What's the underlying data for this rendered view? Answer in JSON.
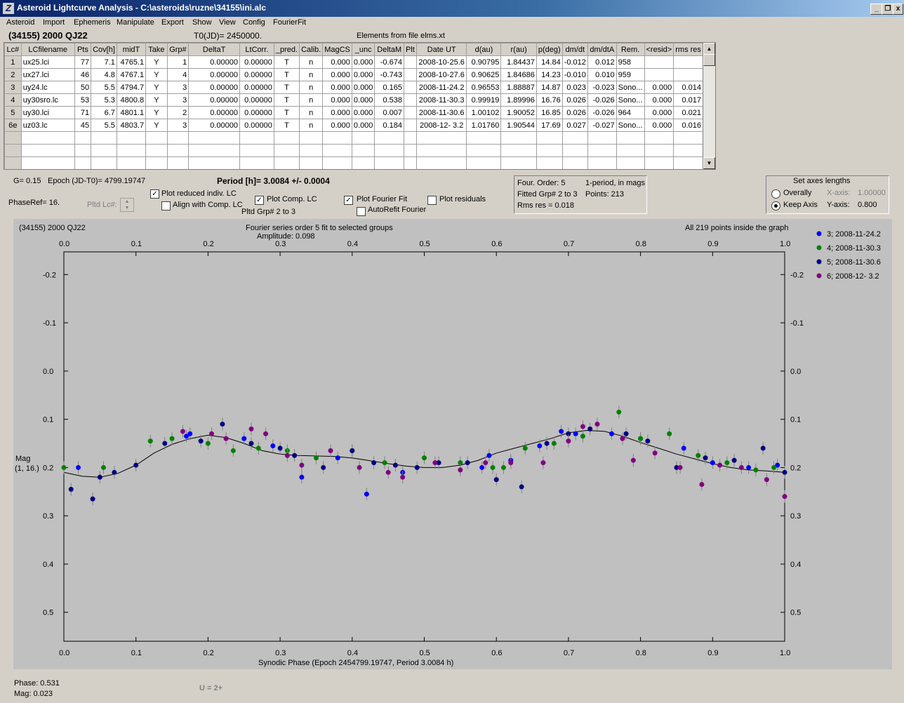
{
  "window": {
    "title": "Asteroid Lightcurve Analysis - C:\\asteroids\\ruzne\\34155\\ini.alc",
    "icon_letter": "Z",
    "buttons": {
      "minimize": "_",
      "restore": "❐",
      "close": "x"
    }
  },
  "menu": [
    "Asteroid",
    "Import",
    "Ephemeris",
    "Manipulate",
    "Export",
    "Show",
    "View",
    "Config",
    "FourierFit"
  ],
  "header": {
    "asteroid": "(34155) 2000 QJ22",
    "t0": "T0(JD)= 2450000.",
    "elements": "Elements from file elms.xt"
  },
  "table": {
    "columns": [
      "Lc#",
      "LCfilename",
      "Pts",
      "Cov[h]",
      "midT",
      "Take",
      "Grp#",
      "DeltaT",
      "LtCorr.",
      "_pred.",
      "Calib.",
      "MagCS",
      "_unc",
      "DeltaM",
      "Plt",
      "Date UT",
      "d(au)",
      "r(au)",
      "p(deg)",
      "dm/dt",
      "dm/dtA",
      "Rem.",
      "<resid>",
      "rms res"
    ],
    "rows": [
      [
        "1",
        "ux25.lci",
        "77",
        "7.1",
        "4765.1",
        "Y",
        "1",
        "0.00000",
        "0.00000",
        "T",
        "n",
        "0.000",
        "0.000",
        "-0.674",
        "",
        "2008-10-25.6",
        "0.90795",
        "1.84437",
        "14.84",
        "-0.012",
        "0.012",
        "958",
        "",
        ""
      ],
      [
        "2",
        "ux27.lci",
        "46",
        "4.8",
        "4767.1",
        "Y",
        "4",
        "0.00000",
        "0.00000",
        "T",
        "n",
        "0.000",
        "0.000",
        "-0.743",
        "",
        "2008-10-27.6",
        "0.90625",
        "1.84686",
        "14.23",
        "-0.010",
        "0.010",
        "959",
        "",
        ""
      ],
      [
        "3",
        "uy24.lc",
        "50",
        "5.5",
        "4794.7",
        "Y",
        "3",
        "0.00000",
        "0.00000",
        "T",
        "n",
        "0.000",
        "0.000",
        "0.165",
        "",
        "2008-11-24.2",
        "0.96553",
        "1.88887",
        "14.87",
        "0.023",
        "-0.023",
        "Sono...",
        "0.000",
        "0.014"
      ],
      [
        "4",
        "uy30sro.lc",
        "53",
        "5.3",
        "4800.8",
        "Y",
        "3",
        "0.00000",
        "0.00000",
        "T",
        "n",
        "0.000",
        "0.000",
        "0.538",
        "",
        "2008-11-30.3",
        "0.99919",
        "1.89996",
        "16.76",
        "0.026",
        "-0.026",
        "Sono...",
        "0.000",
        "0.017"
      ],
      [
        "5",
        "uy30.lci",
        "71",
        "6.7",
        "4801.1",
        "Y",
        "2",
        "0.00000",
        "0.00000",
        "T",
        "n",
        "0.000",
        "0.000",
        "0.007",
        "",
        "2008-11-30.6",
        "1.00102",
        "1.90052",
        "16.85",
        "0.026",
        "-0.026",
        "964",
        "0.000",
        "0.021"
      ],
      [
        "6e",
        "uz03.lc",
        "45",
        "5.5",
        "4803.7",
        "Y",
        "3",
        "0.00000",
        "0.00000",
        "T",
        "n",
        "0.000",
        "0.000",
        "0.184",
        "",
        "2008-12- 3.2",
        "1.01760",
        "1.90544",
        "17.69",
        "0.027",
        "-0.027",
        "Sono...",
        "0.000",
        "0.016"
      ]
    ],
    "empty_rows": 3
  },
  "controls": {
    "g": "G= 0.15",
    "epoch": "Epoch (JD-T0)= 4799.19747",
    "period": "Period [h]= 3.0084 +/- 0.0004",
    "phaseref": "PhaseRef= 16.",
    "pltd_lc": "Pltd Lc#:",
    "plot_reduced": "Plot reduced indiv. LC",
    "align_comp": "Align with Comp. LC",
    "plot_comp": "Plot Comp. LC",
    "pltd_grp": "Pltd Grp#  2  to  3",
    "plot_fourier": "Plot Fourier Fit",
    "autorefit": "AutoRefit Fourier",
    "plot_residuals": "Plot residuals",
    "checked": {
      "plot_reduced": true,
      "align_comp": false,
      "plot_comp": true,
      "plot_fourier": true,
      "autorefit": false,
      "plot_residuals": false
    },
    "check_mark": "✓",
    "fourier_info": {
      "order": "Four. Order:  5",
      "mode": "1-period, in mags",
      "fitted": "Fitted Grp# 2 to 3",
      "points": "Points: 213",
      "rms": "Rms res     = 0.018"
    },
    "axes": {
      "title": "Set axes lengths",
      "overally": "Overally",
      "keep_axis": "Keep Axis",
      "xaxis_label": "X-axis:",
      "xaxis_value": "1.00000",
      "yaxis_label": "Y-axis:",
      "yaxis_value": "0.800",
      "selected": "keep_axis"
    }
  },
  "plot": {
    "object": "(34155) 2000 QJ22",
    "fit_title": "Fourier series order 5 fit to selected groups",
    "amplitude": "Amplitude: 0.098",
    "points_note": "All 219 points inside the graph",
    "ylabel_line1": "Mag",
    "ylabel_line2": "(1, 16.)",
    "xlabel": "Synodic Phase (Epoch 2454799.19747, Period 3.0084 h)"
  },
  "status": {
    "phase": "Phase:  0.531",
    "mag": "Mag:    0.023",
    "u": "U = 2+"
  },
  "chart_data": {
    "type": "scatter",
    "title": "Fourier series order 5 fit to selected groups",
    "xlabel": "Synodic Phase (Epoch 2454799.19747, Period 3.0084 h)",
    "ylabel": "Mag (1, 16.)",
    "xlim": [
      0.0,
      1.0
    ],
    "ylim": [
      -0.2,
      0.6
    ],
    "y_inverted": true,
    "x_ticks": [
      "0.0",
      "0.1",
      "0.2",
      "0.3",
      "0.4",
      "0.5",
      "0.6",
      "0.7",
      "0.8",
      "0.9",
      "1.0"
    ],
    "y_ticks": [
      "-0.2",
      "-0.1",
      "0.0",
      "0.1",
      "0.2",
      "0.3",
      "0.4",
      "0.5"
    ],
    "y_tick_values": [
      -0.2,
      -0.1,
      0.0,
      0.1,
      0.2,
      0.3,
      0.4,
      0.5
    ],
    "grid": false,
    "legend_position": "right",
    "fit_curve": {
      "x": [
        0.0,
        0.025,
        0.05,
        0.075,
        0.1,
        0.125,
        0.15,
        0.175,
        0.2,
        0.225,
        0.25,
        0.275,
        0.3,
        0.325,
        0.35,
        0.375,
        0.4,
        0.425,
        0.45,
        0.475,
        0.5,
        0.525,
        0.55,
        0.575,
        0.6,
        0.625,
        0.65,
        0.675,
        0.7,
        0.725,
        0.75,
        0.775,
        0.8,
        0.825,
        0.85,
        0.875,
        0.9,
        0.925,
        0.95,
        0.975,
        1.0
      ],
      "y": [
        0.21,
        0.218,
        0.22,
        0.212,
        0.195,
        0.17,
        0.152,
        0.14,
        0.133,
        0.138,
        0.15,
        0.165,
        0.172,
        0.175,
        0.176,
        0.177,
        0.18,
        0.186,
        0.192,
        0.197,
        0.2,
        0.2,
        0.195,
        0.185,
        0.17,
        0.16,
        0.15,
        0.14,
        0.128,
        0.123,
        0.125,
        0.135,
        0.148,
        0.16,
        0.172,
        0.182,
        0.192,
        0.2,
        0.205,
        0.207,
        0.21
      ]
    },
    "series": [
      {
        "name": "3; 2008-11-24.2",
        "color": "#0000ff",
        "points": [
          [
            0.02,
            0.2
          ],
          [
            0.17,
            0.135
          ],
          [
            0.175,
            0.13
          ],
          [
            0.25,
            0.14
          ],
          [
            0.29,
            0.155
          ],
          [
            0.33,
            0.22
          ],
          [
            0.38,
            0.18
          ],
          [
            0.42,
            0.255
          ],
          [
            0.47,
            0.21
          ],
          [
            0.58,
            0.2
          ],
          [
            0.59,
            0.175
          ],
          [
            0.62,
            0.185
          ],
          [
            0.66,
            0.155
          ],
          [
            0.69,
            0.125
          ],
          [
            0.71,
            0.13
          ],
          [
            0.76,
            0.13
          ],
          [
            0.8,
            0.14
          ],
          [
            0.86,
            0.16
          ],
          [
            0.9,
            0.19
          ],
          [
            0.95,
            0.2
          ],
          [
            0.99,
            0.195
          ]
        ]
      },
      {
        "name": "4; 2008-11-30.3",
        "color": "#008000",
        "points": [
          [
            0.0,
            0.2
          ],
          [
            0.055,
            0.2
          ],
          [
            0.12,
            0.145
          ],
          [
            0.15,
            0.14
          ],
          [
            0.2,
            0.15
          ],
          [
            0.235,
            0.165
          ],
          [
            0.27,
            0.16
          ],
          [
            0.31,
            0.165
          ],
          [
            0.35,
            0.18
          ],
          [
            0.4,
            0.165
          ],
          [
            0.445,
            0.19
          ],
          [
            0.5,
            0.18
          ],
          [
            0.55,
            0.19
          ],
          [
            0.595,
            0.2
          ],
          [
            0.61,
            0.2
          ],
          [
            0.64,
            0.16
          ],
          [
            0.68,
            0.15
          ],
          [
            0.72,
            0.135
          ],
          [
            0.77,
            0.085
          ],
          [
            0.8,
            0.14
          ],
          [
            0.84,
            0.13
          ],
          [
            0.88,
            0.175
          ],
          [
            0.92,
            0.19
          ],
          [
            0.96,
            0.205
          ],
          [
            0.985,
            0.2
          ]
        ]
      },
      {
        "name": "5; 2008-11-30.6",
        "color": "#000080",
        "points": [
          [
            0.01,
            0.245
          ],
          [
            0.04,
            0.265
          ],
          [
            0.05,
            0.22
          ],
          [
            0.07,
            0.21
          ],
          [
            0.1,
            0.195
          ],
          [
            0.14,
            0.15
          ],
          [
            0.19,
            0.145
          ],
          [
            0.22,
            0.11
          ],
          [
            0.26,
            0.15
          ],
          [
            0.3,
            0.16
          ],
          [
            0.32,
            0.175
          ],
          [
            0.36,
            0.2
          ],
          [
            0.4,
            0.165
          ],
          [
            0.43,
            0.19
          ],
          [
            0.46,
            0.195
          ],
          [
            0.49,
            0.2
          ],
          [
            0.52,
            0.19
          ],
          [
            0.56,
            0.19
          ],
          [
            0.6,
            0.225
          ],
          [
            0.635,
            0.24
          ],
          [
            0.67,
            0.15
          ],
          [
            0.7,
            0.13
          ],
          [
            0.73,
            0.12
          ],
          [
            0.78,
            0.13
          ],
          [
            0.81,
            0.145
          ],
          [
            0.85,
            0.2
          ],
          [
            0.89,
            0.18
          ],
          [
            0.93,
            0.185
          ],
          [
            0.97,
            0.16
          ],
          [
            1.0,
            0.21
          ]
        ]
      },
      {
        "name": "6; 2008-12- 3.2",
        "color": "#800080",
        "points": [
          [
            0.165,
            0.125
          ],
          [
            0.205,
            0.13
          ],
          [
            0.225,
            0.14
          ],
          [
            0.26,
            0.12
          ],
          [
            0.28,
            0.13
          ],
          [
            0.31,
            0.175
          ],
          [
            0.33,
            0.195
          ],
          [
            0.37,
            0.165
          ],
          [
            0.41,
            0.2
          ],
          [
            0.45,
            0.21
          ],
          [
            0.47,
            0.22
          ],
          [
            0.515,
            0.19
          ],
          [
            0.55,
            0.205
          ],
          [
            0.585,
            0.19
          ],
          [
            0.62,
            0.19
          ],
          [
            0.665,
            0.19
          ],
          [
            0.7,
            0.145
          ],
          [
            0.72,
            0.115
          ],
          [
            0.74,
            0.11
          ],
          [
            0.775,
            0.14
          ],
          [
            0.79,
            0.185
          ],
          [
            0.82,
            0.17
          ],
          [
            0.855,
            0.2
          ],
          [
            0.885,
            0.235
          ],
          [
            0.91,
            0.195
          ],
          [
            0.94,
            0.2
          ],
          [
            0.975,
            0.225
          ],
          [
            1.0,
            0.26
          ]
        ]
      }
    ]
  }
}
